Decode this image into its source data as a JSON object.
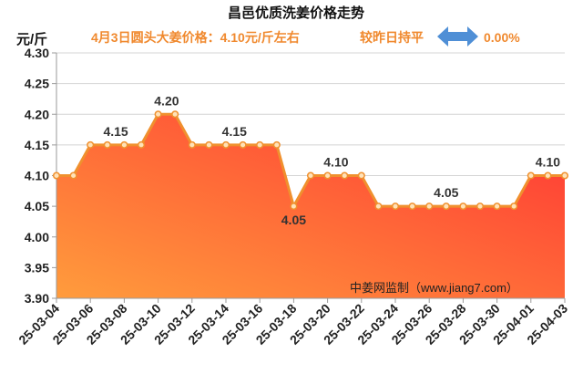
{
  "chart_data": {
    "type": "area",
    "title": "昌邑优质洗姜价格走势",
    "subtitle": "4月3日圆头大姜价格：4.10元/斤左右",
    "change_text": "较昨日持平",
    "change_icon": "double-arrow-icon",
    "change_percent": "0.00%",
    "ylabel": "元/斤",
    "xlabel": "",
    "ylim": [
      3.9,
      4.3
    ],
    "yticks": [
      "3.90",
      "3.95",
      "4.00",
      "4.05",
      "4.10",
      "4.15",
      "4.20",
      "4.25",
      "4.30"
    ],
    "x": [
      "25-03-04",
      "25-03-05",
      "25-03-06",
      "25-03-07",
      "25-03-08",
      "25-03-09",
      "25-03-10",
      "25-03-11",
      "25-03-12",
      "25-03-13",
      "25-03-14",
      "25-03-15",
      "25-03-16",
      "25-03-17",
      "25-03-18",
      "25-03-19",
      "25-03-20",
      "25-03-21",
      "25-03-22",
      "25-03-23",
      "25-03-24",
      "25-03-25",
      "25-03-26",
      "25-03-27",
      "25-03-28",
      "25-03-29",
      "25-03-30",
      "25-03-31",
      "25-04-01",
      "25-04-02",
      "25-04-03"
    ],
    "xtick_labels": [
      "25-03-04",
      "25-03-06",
      "25-03-08",
      "25-03-10",
      "25-03-12",
      "25-03-14",
      "25-03-16",
      "25-03-18",
      "25-03-20",
      "25-03-22",
      "25-03-24",
      "25-03-26",
      "25-03-28",
      "25-03-30",
      "25-04-01",
      "25-04-03"
    ],
    "values": [
      4.1,
      4.1,
      4.15,
      4.15,
      4.15,
      4.15,
      4.2,
      4.2,
      4.15,
      4.15,
      4.15,
      4.15,
      4.15,
      4.15,
      4.05,
      4.1,
      4.1,
      4.1,
      4.1,
      4.05,
      4.05,
      4.05,
      4.05,
      4.05,
      4.05,
      4.05,
      4.05,
      4.05,
      4.1,
      4.1,
      4.1
    ],
    "data_labels": [
      {
        "text": "4.15",
        "from": "25-03-06",
        "to": "25-03-09",
        "position": "above"
      },
      {
        "text": "4.20",
        "from": "25-03-10",
        "to": "25-03-11",
        "position": "above"
      },
      {
        "text": "4.15",
        "from": "25-03-12",
        "to": "25-03-17",
        "position": "above"
      },
      {
        "text": "4.05",
        "from": "25-03-18",
        "to": "25-03-18",
        "position": "below"
      },
      {
        "text": "4.10",
        "from": "25-03-19",
        "to": "25-03-22",
        "position": "above"
      },
      {
        "text": "4.05",
        "from": "25-03-23",
        "to": "25-03-31",
        "position": "above"
      },
      {
        "text": "4.10",
        "from": "25-04-01",
        "to": "25-04-03",
        "position": "above"
      }
    ],
    "watermark": "中姜网监制（www.jiang7.com）",
    "grid": true,
    "colors": {
      "title": "#111111",
      "accent": "#f0892e",
      "line": "#f0902e",
      "marker_fill": "#ffe2b8",
      "fill_top": "#ff3434",
      "fill_bottom": "#ff9c3c",
      "grid": "#d4d4d4",
      "axis": "#9a9a9a",
      "arrow": "#4f8fd6"
    }
  }
}
